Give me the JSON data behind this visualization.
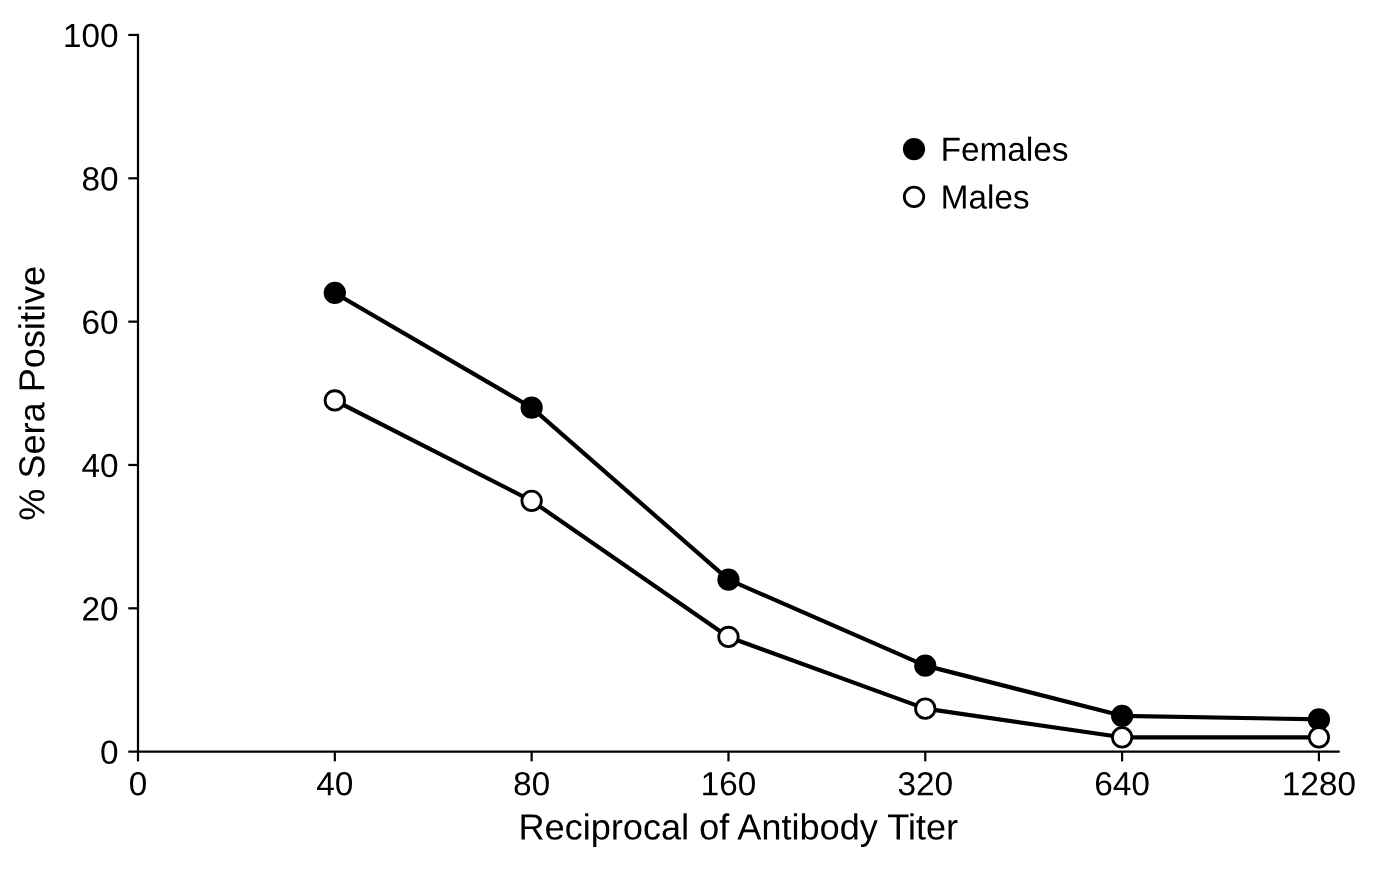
{
  "chart_data": {
    "type": "line",
    "xlabel": "Reciprocal of Antibody Titer",
    "ylabel": "% Sera Positive",
    "categories": [
      "0",
      "40",
      "80",
      "160",
      "320",
      "640",
      "1280"
    ],
    "series": [
      {
        "name": "Females",
        "color": "#000000",
        "values": [
          null,
          64,
          48,
          24,
          12,
          5,
          4.5
        ]
      },
      {
        "name": "Males",
        "color": "#ffffff",
        "values": [
          null,
          49,
          35,
          16,
          6,
          2,
          2
        ]
      }
    ],
    "ylim": [
      0,
      100
    ],
    "yticks": [
      0,
      20,
      40,
      60,
      80,
      100
    ],
    "marker": "circle",
    "line_style": "solid",
    "grid": false,
    "legend": "top right"
  }
}
